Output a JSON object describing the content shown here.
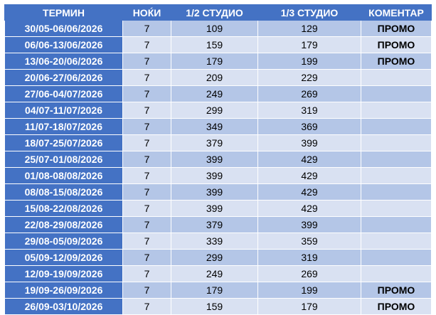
{
  "colors": {
    "header": "#4472C4",
    "row_odd": "#B4C6E7",
    "row_even": "#D9E1F2"
  },
  "headers": [
    "ТЕРМИН",
    "НОЌИ",
    "1/2 СТУДИО",
    "1/3 СТУДИО",
    "КОМЕНТАР"
  ],
  "rows": [
    [
      "30/05-06/06/2026",
      "7",
      "109",
      "129",
      "ПРОМО"
    ],
    [
      "06/06-13/06/2026",
      "7",
      "159",
      "179",
      "ПРОМО"
    ],
    [
      "13/06-20/06/2026",
      "7",
      "179",
      "199",
      "ПРОМО"
    ],
    [
      "20/06-27/06/2026",
      "7",
      "209",
      "229",
      ""
    ],
    [
      "27/06-04/07/2026",
      "7",
      "249",
      "269",
      ""
    ],
    [
      "04/07-11/07/2026",
      "7",
      "299",
      "319",
      ""
    ],
    [
      "11/07-18/07/2026",
      "7",
      "349",
      "369",
      ""
    ],
    [
      "18/07-25/07/2026",
      "7",
      "379",
      "399",
      ""
    ],
    [
      "25/07-01/08/2026",
      "7",
      "399",
      "429",
      ""
    ],
    [
      "01/08-08/08/2026",
      "7",
      "399",
      "429",
      ""
    ],
    [
      "08/08-15/08/2026",
      "7",
      "399",
      "429",
      ""
    ],
    [
      "15/08-22/08/2026",
      "7",
      "399",
      "429",
      ""
    ],
    [
      "22/08-29/08/2026",
      "7",
      "379",
      "399",
      ""
    ],
    [
      "29/08-05/09/2026",
      "7",
      "339",
      "359",
      ""
    ],
    [
      "05/09-12/09/2026",
      "7",
      "299",
      "319",
      ""
    ],
    [
      "12/09-19/09/2026",
      "7",
      "249",
      "269",
      ""
    ],
    [
      "19/09-26/09/2026",
      "7",
      "179",
      "199",
      "ПРОМО"
    ],
    [
      "26/09-03/10/2026",
      "7",
      "159",
      "179",
      "ПРОМО"
    ]
  ]
}
